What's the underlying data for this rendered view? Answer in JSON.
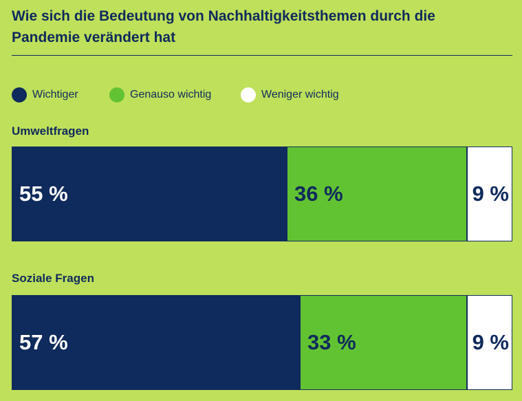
{
  "title": "Wie sich die Bedeutung von Nachhaltigkeitsthemen durch die Pandemie verändert hat",
  "colors": {
    "background": "#bfe05a",
    "wichtiger": "#0f2a5c",
    "genauso": "#62c332",
    "weniger": "#ffffff",
    "text_dark": "#0f2a5c",
    "text_light": "#ffffff"
  },
  "legend": [
    {
      "label": "Wichtiger",
      "color": "#0f2a5c"
    },
    {
      "label": "Genauso wichtig",
      "color": "#62c332"
    },
    {
      "label": "Weniger wichtig",
      "color": "#ffffff"
    }
  ],
  "chart_data": {
    "type": "bar",
    "orientation": "horizontal-stacked-100",
    "title": "Wie sich die Bedeutung von Nachhaltigkeitsthemen durch die Pandemie verändert hat",
    "categories": [
      "Umweltfragen",
      "Soziale Fragen"
    ],
    "series": [
      {
        "name": "Wichtiger",
        "values": [
          55,
          57
        ],
        "labels": [
          "55 %",
          "57 %"
        ]
      },
      {
        "name": "Genauso wichtig",
        "values": [
          36,
          33
        ],
        "labels": [
          "36 %",
          "33 %"
        ]
      },
      {
        "name": "Weniger wichtig",
        "values": [
          9,
          9
        ],
        "labels": [
          "9 %",
          "9 %"
        ]
      }
    ],
    "legend_position": "top-left",
    "grid": false,
    "xlim": [
      0,
      100
    ]
  }
}
